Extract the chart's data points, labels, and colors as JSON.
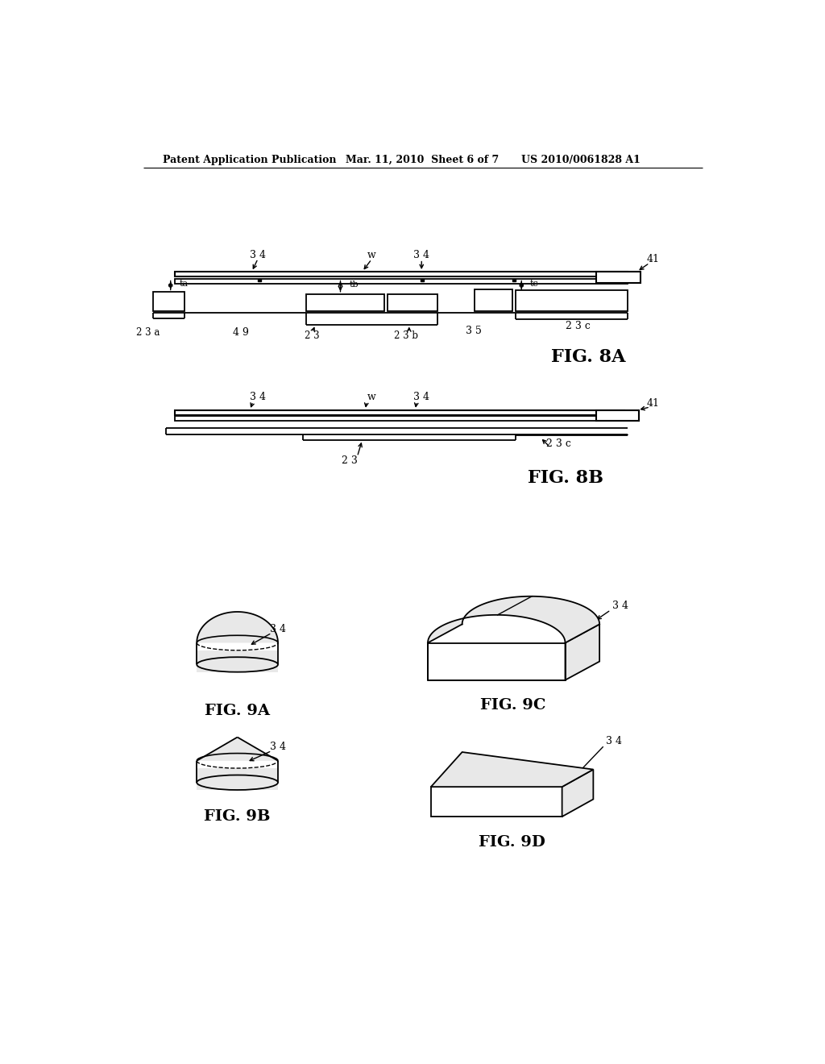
{
  "bg_color": "#ffffff",
  "header_left": "Patent Application Publication",
  "header_mid": "Mar. 11, 2010  Sheet 6 of 7",
  "header_right": "US 2010/0061828 A1",
  "fig8a_label": "FIG. 8A",
  "fig8b_label": "FIG. 8B",
  "fig9a_label": "FIG. 9A",
  "fig9b_label": "FIG. 9B",
  "fig9c_label": "FIG. 9C",
  "fig9d_label": "FIG. 9D",
  "line_color": "#000000",
  "fill_light": "#e8e8e8",
  "fill_white": "#ffffff"
}
